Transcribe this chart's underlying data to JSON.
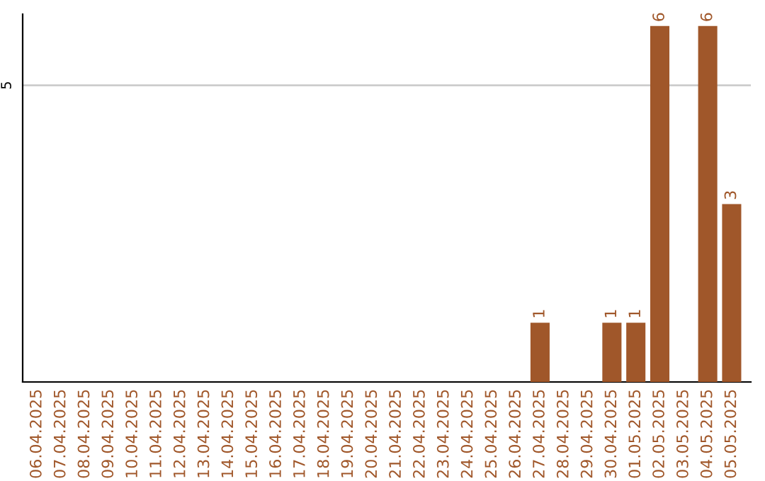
{
  "chart_data": {
    "type": "bar",
    "categories": [
      "06.04.2025",
      "07.04.2025",
      "08.04.2025",
      "09.04.2025",
      "10.04.2025",
      "11.04.2025",
      "12.04.2025",
      "13.04.2025",
      "14.04.2025",
      "15.04.2025",
      "16.04.2025",
      "17.04.2025",
      "18.04.2025",
      "19.04.2025",
      "20.04.2025",
      "21.04.2025",
      "22.04.2025",
      "23.04.2025",
      "24.04.2025",
      "25.04.2025",
      "26.04.2025",
      "27.04.2025",
      "28.04.2025",
      "29.04.2025",
      "30.04.2025",
      "01.05.2025",
      "02.05.2025",
      "03.05.2025",
      "04.05.2025",
      "05.05.2025"
    ],
    "values": [
      null,
      null,
      null,
      null,
      null,
      null,
      null,
      null,
      null,
      null,
      null,
      null,
      null,
      null,
      null,
      null,
      null,
      null,
      null,
      null,
      null,
      1,
      null,
      null,
      1,
      1,
      6,
      null,
      6,
      3
    ],
    "data_labels": true,
    "color": "#a0572a",
    "ylim": [
      0,
      6.2
    ],
    "ref_lines": [
      {
        "axis": "y",
        "value": 5,
        "label": "5",
        "color": "#cccccc"
      }
    ],
    "legend": false
  }
}
